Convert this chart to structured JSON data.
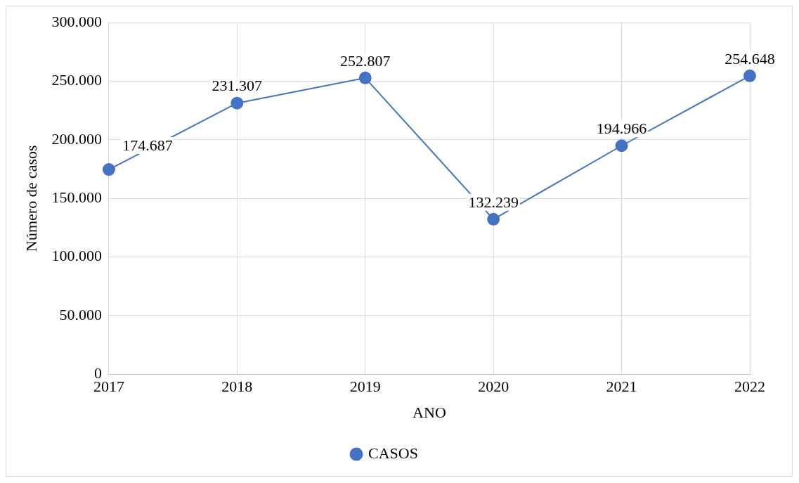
{
  "chart_data": {
    "type": "line",
    "xlabel": "ANO",
    "ylabel": "Número de casos",
    "categories": [
      "2017",
      "2018",
      "2019",
      "2020",
      "2021",
      "2022"
    ],
    "series": [
      {
        "name": "CASOS",
        "color": "#4472c4",
        "values": [
          174687,
          231307,
          252807,
          132239,
          194966,
          254648
        ],
        "value_labels": [
          "174.687",
          "231.307",
          "252.807",
          "132.239",
          "194.966",
          "254.648"
        ]
      }
    ],
    "ylim": [
      0,
      300000
    ],
    "yticks": [
      {
        "value": 0,
        "label": "0"
      },
      {
        "value": 50000,
        "label": "50.000"
      },
      {
        "value": 100000,
        "label": "100.000"
      },
      {
        "value": 150000,
        "label": "150.000"
      },
      {
        "value": 200000,
        "label": "200.000"
      },
      {
        "value": 250000,
        "label": "250.000"
      },
      {
        "value": 300000,
        "label": "300.000"
      }
    ],
    "grid": true,
    "legend": "bottom",
    "marker": "circle",
    "line_style": "solid"
  }
}
